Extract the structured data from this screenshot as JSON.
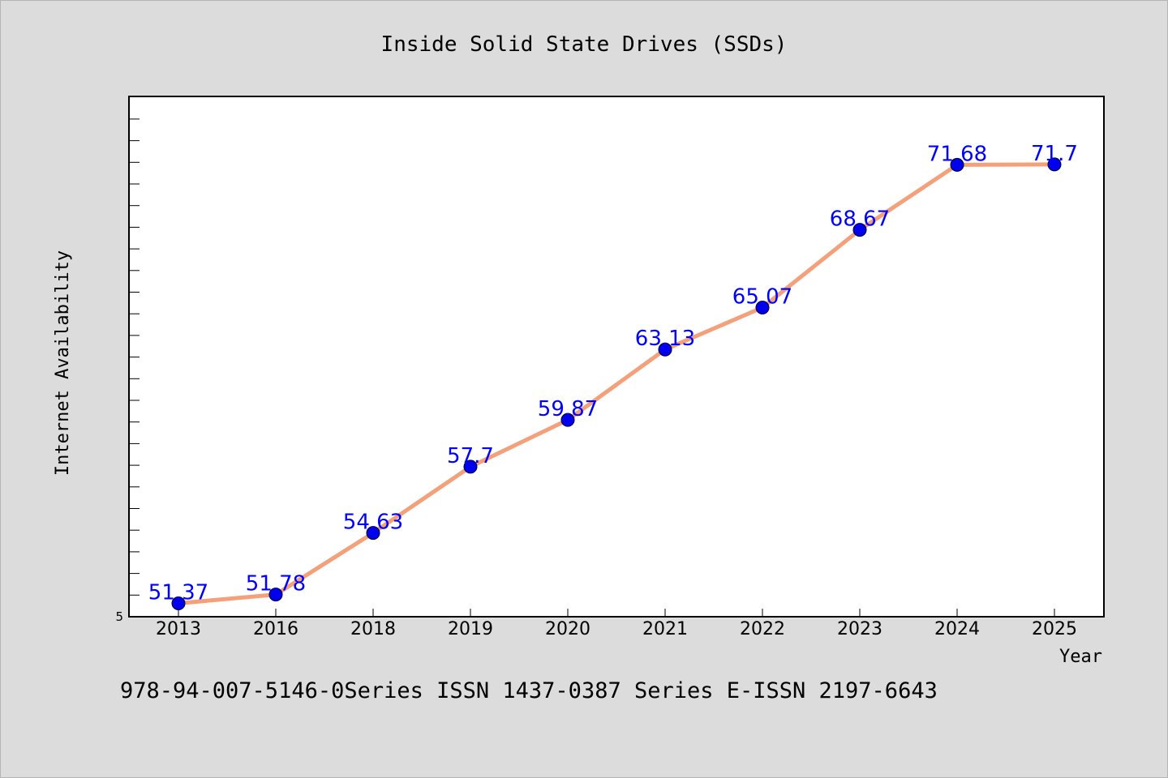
{
  "chart_data": {
    "type": "line",
    "title": "Inside Solid State Drives (SSDs)",
    "xlabel": "Year",
    "ylabel": "Internet Availability",
    "y_tick_label": "5",
    "categories": [
      "2013",
      "2016",
      "2018",
      "2019",
      "2020",
      "2021",
      "2022",
      "2023",
      "2024",
      "2025"
    ],
    "series": [
      {
        "values": [
          51.37,
          51.78,
          54.63,
          57.7,
          59.87,
          63.13,
          65.07,
          68.67,
          71.68,
          71.7
        ],
        "labels": [
          "51.37",
          "51.78",
          "54.63",
          "57.7",
          "59.87",
          "63.13",
          "65.07",
          "68.67",
          "71.68",
          "71.7"
        ]
      }
    ],
    "ylim": [
      50.75,
      74.85
    ],
    "grid": false,
    "legend": "none",
    "colors": {
      "line": "#f4a07a",
      "marker": "#0000ee",
      "data_label": "#0000ff",
      "background": "#dcdcdc",
      "plot_area": "#ffffff"
    }
  },
  "footer": {
    "text": "978-94-007-5146-0Series ISSN 1437-0387 Series E-ISSN 2197-6643"
  }
}
